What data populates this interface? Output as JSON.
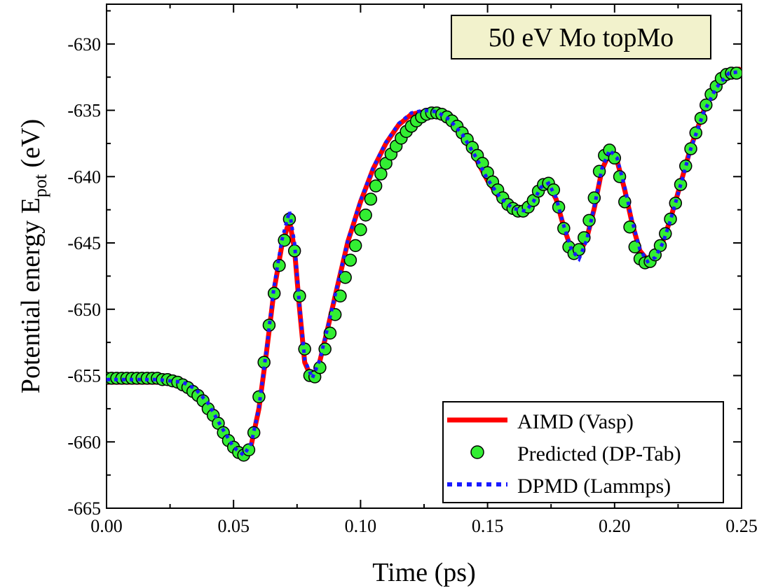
{
  "chart_data": {
    "type": "line",
    "title": "50 eV Mo topMo",
    "xlabel": "Time (ps)",
    "ylabel": {
      "main": "Potential energy E",
      "sub": "pot",
      "unit": " (eV)"
    },
    "xlim": [
      0.0,
      0.25
    ],
    "ylim": [
      -665,
      -627
    ],
    "xticks": [
      0.0,
      0.05,
      0.1,
      0.15,
      0.2,
      0.25
    ],
    "xtick_labels": [
      "0.00",
      "0.05",
      "0.10",
      "0.15",
      "0.20",
      "0.25"
    ],
    "yticks": [
      -665,
      -660,
      -655,
      -650,
      -645,
      -640,
      -635,
      -630
    ],
    "ytick_labels": [
      "-665",
      "-660",
      "-655",
      "-650",
      "-645",
      "-640",
      "-635",
      "-630"
    ],
    "legend_position": "bottom-right",
    "series": [
      {
        "name": "AIMD (Vasp)",
        "style": "solid-line",
        "color": "#ff0000",
        "x": [
          0.0,
          0.02,
          0.03,
          0.035,
          0.04,
          0.045,
          0.05,
          0.054,
          0.057,
          0.06,
          0.063,
          0.066,
          0.069,
          0.072,
          0.074,
          0.076,
          0.078,
          0.081,
          0.084,
          0.087,
          0.09,
          0.095,
          0.1,
          0.105,
          0.11,
          0.115,
          0.12,
          0.125,
          0.13,
          0.135,
          0.14,
          0.145,
          0.15,
          0.155,
          0.16,
          0.165,
          0.168,
          0.171,
          0.174,
          0.177,
          0.18,
          0.183,
          0.186,
          0.189,
          0.192,
          0.195,
          0.198,
          0.201,
          0.204,
          0.207,
          0.21,
          0.213,
          0.216,
          0.219,
          0.222,
          0.225,
          0.23,
          0.235,
          0.24,
          0.245,
          0.249
        ],
        "y": [
          -655.5,
          -655.5,
          -655.6,
          -656.1,
          -657.2,
          -658.9,
          -660.5,
          -661.1,
          -660.2,
          -657.5,
          -653.2,
          -648.5,
          -645.2,
          -643.3,
          -645.5,
          -650.0,
          -654.0,
          -655.3,
          -653.9,
          -651.5,
          -649.0,
          -644.9,
          -641.9,
          -639.4,
          -637.5,
          -636.1,
          -635.3,
          -635.1,
          -635.2,
          -635.8,
          -636.9,
          -638.5,
          -640.3,
          -641.7,
          -642.5,
          -642.8,
          -642.0,
          -640.9,
          -640.6,
          -641.7,
          -643.8,
          -645.5,
          -645.8,
          -644.7,
          -642.4,
          -639.5,
          -638.2,
          -638.8,
          -641.0,
          -643.6,
          -645.6,
          -646.3,
          -646.0,
          -644.9,
          -643.2,
          -641.2,
          -637.8,
          -635.1,
          -633.2,
          -632.1,
          -631.9
        ]
      },
      {
        "name": "Predicted (DP-Tab)",
        "style": "circle-markers",
        "color": "#33ee33",
        "x": [
          0.0,
          0.002,
          0.004,
          0.006,
          0.008,
          0.01,
          0.012,
          0.014,
          0.016,
          0.018,
          0.02,
          0.022,
          0.024,
          0.026,
          0.028,
          0.03,
          0.032,
          0.034,
          0.036,
          0.038,
          0.04,
          0.042,
          0.044,
          0.046,
          0.048,
          0.05,
          0.052,
          0.054,
          0.056,
          0.058,
          0.06,
          0.062,
          0.064,
          0.066,
          0.068,
          0.07,
          0.072,
          0.074,
          0.076,
          0.078,
          0.08,
          0.082,
          0.084,
          0.086,
          0.088,
          0.09,
          0.092,
          0.094,
          0.096,
          0.098,
          0.1,
          0.102,
          0.104,
          0.106,
          0.108,
          0.11,
          0.112,
          0.114,
          0.116,
          0.118,
          0.12,
          0.122,
          0.124,
          0.126,
          0.128,
          0.13,
          0.132,
          0.134,
          0.136,
          0.138,
          0.14,
          0.142,
          0.144,
          0.146,
          0.148,
          0.15,
          0.152,
          0.154,
          0.156,
          0.158,
          0.16,
          0.162,
          0.164,
          0.166,
          0.168,
          0.17,
          0.172,
          0.174,
          0.176,
          0.178,
          0.18,
          0.182,
          0.184,
          0.186,
          0.188,
          0.19,
          0.192,
          0.194,
          0.196,
          0.198,
          0.2,
          0.202,
          0.204,
          0.206,
          0.208,
          0.21,
          0.212,
          0.214,
          0.216,
          0.218,
          0.22,
          0.222,
          0.224,
          0.226,
          0.228,
          0.23,
          0.232,
          0.234,
          0.236,
          0.238,
          0.24,
          0.242,
          0.244,
          0.246,
          0.248
        ],
        "y": [
          -655.2,
          -655.2,
          -655.2,
          -655.2,
          -655.2,
          -655.2,
          -655.2,
          -655.2,
          -655.2,
          -655.2,
          -655.2,
          -655.3,
          -655.3,
          -655.4,
          -655.5,
          -655.7,
          -655.9,
          -656.2,
          -656.5,
          -656.9,
          -657.5,
          -658.0,
          -658.6,
          -659.3,
          -659.9,
          -660.4,
          -660.8,
          -661.0,
          -660.6,
          -659.3,
          -656.6,
          -654.0,
          -651.2,
          -648.8,
          -646.7,
          -644.8,
          -643.2,
          -645.6,
          -649.0,
          -653.0,
          -655.0,
          -655.1,
          -654.4,
          -653.0,
          -651.8,
          -650.4,
          -649.0,
          -647.6,
          -646.3,
          -645.2,
          -644.0,
          -642.9,
          -641.7,
          -640.7,
          -639.8,
          -639.0,
          -638.3,
          -637.7,
          -637.1,
          -636.6,
          -636.2,
          -635.8,
          -635.5,
          -635.3,
          -635.2,
          -635.2,
          -635.3,
          -635.5,
          -635.8,
          -636.2,
          -636.7,
          -637.2,
          -637.8,
          -638.4,
          -639.0,
          -639.7,
          -640.4,
          -641.0,
          -641.6,
          -642.1,
          -642.4,
          -642.6,
          -642.6,
          -642.3,
          -641.8,
          -641.1,
          -640.6,
          -640.5,
          -641.0,
          -642.3,
          -643.9,
          -645.3,
          -645.8,
          -645.5,
          -644.6,
          -643.3,
          -641.6,
          -639.6,
          -638.4,
          -638.0,
          -638.6,
          -640.0,
          -641.9,
          -643.8,
          -645.3,
          -646.2,
          -646.5,
          -646.4,
          -645.9,
          -645.2,
          -644.3,
          -643.2,
          -642.0,
          -640.6,
          -639.2,
          -637.9,
          -636.7,
          -635.6,
          -634.6,
          -633.8,
          -633.2,
          -632.6,
          -632.3,
          -632.2,
          -632.2
        ]
      },
      {
        "name": "DPMD (Lammps)",
        "style": "dotted-line",
        "color": "#1a1aff",
        "x": [
          0.0,
          0.02,
          0.03,
          0.035,
          0.04,
          0.045,
          0.05,
          0.054,
          0.057,
          0.06,
          0.063,
          0.066,
          0.069,
          0.072,
          0.074,
          0.076,
          0.078,
          0.081,
          0.084,
          0.087,
          0.09,
          0.095,
          0.1,
          0.105,
          0.11,
          0.115,
          0.12,
          0.125,
          0.13,
          0.135,
          0.14,
          0.145,
          0.15,
          0.155,
          0.16,
          0.165,
          0.168,
          0.171,
          0.174,
          0.177,
          0.18,
          0.183,
          0.186,
          0.189,
          0.192,
          0.195,
          0.198,
          0.201,
          0.204,
          0.207,
          0.21,
          0.213,
          0.216,
          0.219,
          0.222,
          0.225,
          0.23,
          0.235,
          0.24,
          0.245,
          0.249
        ],
        "y": [
          -655.3,
          -655.3,
          -655.5,
          -656.0,
          -657.1,
          -658.8,
          -660.4,
          -661.0,
          -660.1,
          -657.4,
          -653.0,
          -648.2,
          -644.8,
          -642.6,
          -645.0,
          -649.8,
          -653.8,
          -655.2,
          -653.8,
          -651.4,
          -648.9,
          -644.8,
          -641.8,
          -639.3,
          -637.4,
          -636.0,
          -635.2,
          -635.0,
          -635.1,
          -635.7,
          -636.8,
          -638.4,
          -640.2,
          -641.6,
          -642.4,
          -642.6,
          -641.9,
          -640.8,
          -640.5,
          -641.6,
          -643.7,
          -645.5,
          -646.2,
          -644.8,
          -642.3,
          -639.4,
          -638.0,
          -638.6,
          -640.8,
          -643.4,
          -645.5,
          -646.4,
          -646.1,
          -645.0,
          -643.3,
          -641.3,
          -637.9,
          -635.2,
          -633.3,
          -632.2,
          -632.1
        ]
      }
    ]
  }
}
